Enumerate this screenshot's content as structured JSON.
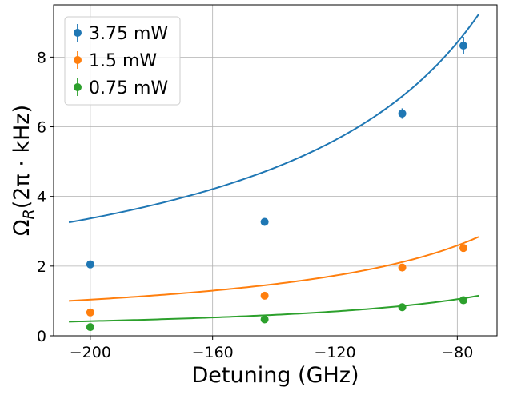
{
  "chart_data": {
    "type": "scatter",
    "xlabel": "Detuning (GHz)",
    "ylabel_main": "Ω",
    "ylabel_sub": "R",
    "ylabel_rest": "(2π · kHz)",
    "xlim": [
      -212,
      -67
    ],
    "ylim": [
      0,
      9.5
    ],
    "xticks": [
      -200,
      -160,
      -120,
      -80
    ],
    "xtick_labels": [
      "−200",
      "−160",
      "−120",
      "−80"
    ],
    "yticks": [
      0,
      2,
      4,
      6,
      8
    ],
    "ytick_labels": [
      "0",
      "2",
      "4",
      "6",
      "8"
    ],
    "grid": true,
    "legend_position": "top-left",
    "x": [
      -200,
      -143,
      -98,
      -78
    ],
    "series": [
      {
        "name": "3.75 mW",
        "color": "#1f77b4",
        "values": [
          2.05,
          3.27,
          6.38,
          8.33
        ],
        "errors": [
          0.07,
          0.07,
          0.15,
          0.25
        ],
        "fit_x": [
          -207,
          -73
        ],
        "fit_amplitude": 9.23
      },
      {
        "name": "1.5 mW",
        "color": "#ff7f0e",
        "values": [
          0.67,
          1.15,
          1.96,
          2.52
        ],
        "errors": [
          0.04,
          0.04,
          0.05,
          0.06
        ],
        "fit_x": [
          -207,
          -73
        ],
        "fit_amplitude": 2.84
      },
      {
        "name": "0.75 mW",
        "color": "#2ca02c",
        "values": [
          0.25,
          0.47,
          0.82,
          1.02
        ],
        "errors": [
          0.03,
          0.03,
          0.04,
          0.05
        ],
        "fit_x": [
          -207,
          -73
        ],
        "fit_amplitude": 1.15
      }
    ]
  }
}
